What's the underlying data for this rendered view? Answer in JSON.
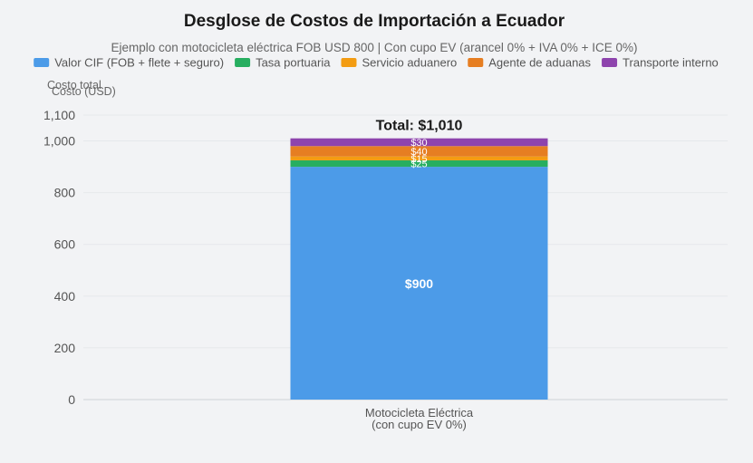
{
  "chart_data": {
    "type": "bar",
    "stacked": true,
    "title": "Desglose de Costos de Importación a Ecuador",
    "subtitle": "Ejemplo con motocicleta eléctrica FOB USD 800 | Con cupo EV (arancel 0% + IVA 0% + ICE 0%)",
    "ylabel_lines": [
      "Costo total",
      "Costo (USD)"
    ],
    "xlabel": "",
    "categories": [
      [
        "Motocicleta Eléctrica",
        "(con cupo EV 0%)"
      ]
    ],
    "series": [
      {
        "name": "Valor CIF (FOB + flete + seguro)",
        "color": "#4c9be8",
        "values": [
          900
        ],
        "labels": [
          "$900"
        ]
      },
      {
        "name": "Tasa portuaria",
        "color": "#27ae60",
        "values": [
          25
        ],
        "labels": [
          "$25"
        ]
      },
      {
        "name": "Servicio aduanero",
        "color": "#f39c12",
        "values": [
          15
        ],
        "labels": [
          "$15"
        ]
      },
      {
        "name": "Agente de aduanas",
        "color": "#e67e22",
        "values": [
          40
        ],
        "labels": [
          "$40"
        ]
      },
      {
        "name": "Transporte interno",
        "color": "#8e44ad",
        "values": [
          30
        ],
        "labels": [
          "$30"
        ]
      }
    ],
    "totals": [
      "Total: $1,010"
    ],
    "ylim": [
      0,
      1100
    ],
    "yticks": [
      0,
      200,
      400,
      600,
      800,
      1000,
      1100
    ],
    "ytick_labels": [
      "0",
      "200",
      "400",
      "600",
      "800",
      "1,000",
      "1,100"
    ],
    "grid": true,
    "legend": "top"
  }
}
